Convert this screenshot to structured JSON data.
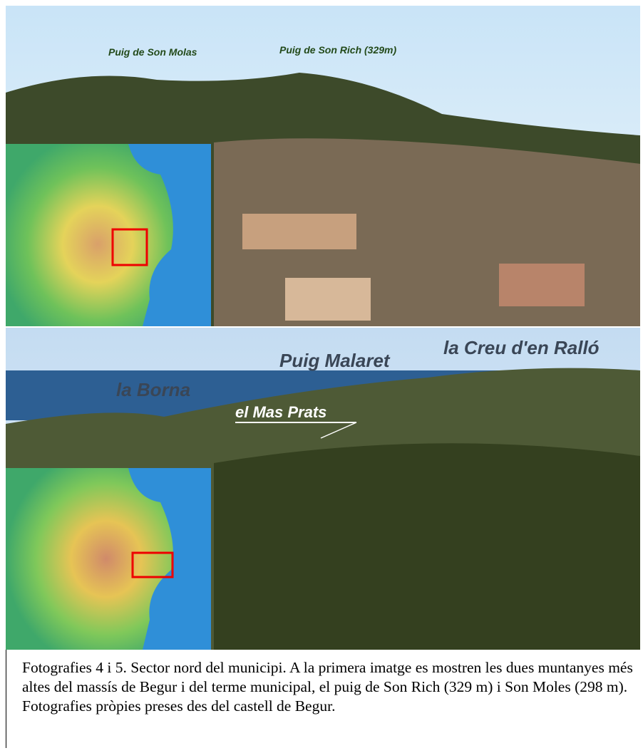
{
  "photos": [
    {
      "labels": [
        "Puig de Son Molas",
        "Puig de Son Rich (329m)"
      ]
    },
    {
      "labels": [
        "la Borna",
        "Puig Malaret",
        "la Creu d'en Ralló",
        "el Mas Prats"
      ]
    }
  ],
  "caption": "Fotografies 4 i 5. Sector nord del municipi. A la primera imatge es mostren les dues muntanyes més altes del massís de Begur i del terme municipal, el puig de Son Rich (329 m) i Son Moles (298 m). Fotografies pròpies preses des del castell de Begur."
}
